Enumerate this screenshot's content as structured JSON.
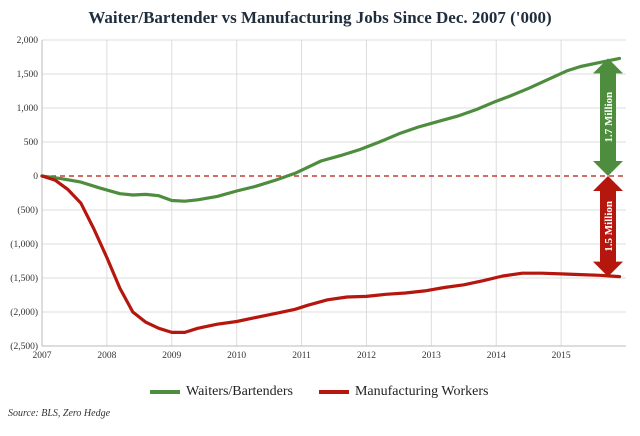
{
  "chart_data": {
    "type": "line",
    "title": "Waiter/Bartender vs Manufacturing Jobs Since Dec. 2007 ('000)",
    "xlabel": "",
    "ylabel": "",
    "xlim": [
      2007.0,
      2016.0
    ],
    "ylim": [
      -2500,
      2000
    ],
    "x_ticks": [
      "2007",
      "2008",
      "2009",
      "2010",
      "2011",
      "2012",
      "2013",
      "2014",
      "2015"
    ],
    "y_ticks": [
      2000,
      1500,
      1000,
      500,
      0,
      -500,
      -1000,
      -1500,
      -2000,
      -2500
    ],
    "y_tick_labels": [
      "2,000",
      "1,500",
      "1,000",
      "500",
      "0",
      "(500)",
      "(1,000)",
      "(1,500)",
      "(2,000)",
      "(2,500)"
    ],
    "series": [
      {
        "name": "Waiters/Bartenders",
        "color": "#4e8d3e",
        "points": [
          [
            2007.0,
            0
          ],
          [
            2007.3,
            -40
          ],
          [
            2007.6,
            -90
          ],
          [
            2007.9,
            -180
          ],
          [
            2008.2,
            -260
          ],
          [
            2008.4,
            -280
          ],
          [
            2008.6,
            -270
          ],
          [
            2008.8,
            -290
          ],
          [
            2009.0,
            -360
          ],
          [
            2009.2,
            -370
          ],
          [
            2009.4,
            -350
          ],
          [
            2009.7,
            -300
          ],
          [
            2010.0,
            -220
          ],
          [
            2010.3,
            -150
          ],
          [
            2010.6,
            -60
          ],
          [
            2010.9,
            40
          ],
          [
            2011.1,
            130
          ],
          [
            2011.3,
            220
          ],
          [
            2011.6,
            300
          ],
          [
            2011.9,
            390
          ],
          [
            2012.2,
            500
          ],
          [
            2012.5,
            620
          ],
          [
            2012.8,
            720
          ],
          [
            2013.1,
            800
          ],
          [
            2013.4,
            880
          ],
          [
            2013.7,
            980
          ],
          [
            2014.0,
            1100
          ],
          [
            2014.2,
            1170
          ],
          [
            2014.5,
            1290
          ],
          [
            2014.8,
            1420
          ],
          [
            2015.1,
            1550
          ],
          [
            2015.3,
            1610
          ],
          [
            2015.6,
            1670
          ],
          [
            2015.9,
            1730
          ]
        ]
      },
      {
        "name": "Manufacturing Workers",
        "color": "#b5170f",
        "points": [
          [
            2007.0,
            0
          ],
          [
            2007.2,
            -60
          ],
          [
            2007.4,
            -200
          ],
          [
            2007.6,
            -400
          ],
          [
            2007.8,
            -780
          ],
          [
            2008.0,
            -1200
          ],
          [
            2008.2,
            -1650
          ],
          [
            2008.4,
            -2000
          ],
          [
            2008.6,
            -2150
          ],
          [
            2008.8,
            -2240
          ],
          [
            2009.0,
            -2300
          ],
          [
            2009.2,
            -2300
          ],
          [
            2009.4,
            -2240
          ],
          [
            2009.7,
            -2180
          ],
          [
            2010.0,
            -2140
          ],
          [
            2010.3,
            -2080
          ],
          [
            2010.6,
            -2020
          ],
          [
            2010.9,
            -1960
          ],
          [
            2011.1,
            -1900
          ],
          [
            2011.4,
            -1820
          ],
          [
            2011.7,
            -1780
          ],
          [
            2012.0,
            -1770
          ],
          [
            2012.3,
            -1740
          ],
          [
            2012.6,
            -1720
          ],
          [
            2012.9,
            -1690
          ],
          [
            2013.2,
            -1640
          ],
          [
            2013.5,
            -1600
          ],
          [
            2013.8,
            -1540
          ],
          [
            2014.1,
            -1470
          ],
          [
            2014.4,
            -1430
          ],
          [
            2014.7,
            -1430
          ],
          [
            2015.0,
            -1440
          ],
          [
            2015.3,
            -1450
          ],
          [
            2015.6,
            -1460
          ],
          [
            2015.9,
            -1480
          ]
        ]
      }
    ],
    "reference_line": {
      "y": 0,
      "style": "dashed",
      "color": "#b5170f"
    },
    "annotations": [
      {
        "text": "1.7 Million",
        "from": 0,
        "to": 1730,
        "color": "#4e8d3e"
      },
      {
        "text": "1.5 Million",
        "from": 0,
        "to": -1480,
        "color": "#b5170f"
      }
    ],
    "legend_position": "bottom"
  },
  "source": "Source: BLS, Zero Hedge"
}
